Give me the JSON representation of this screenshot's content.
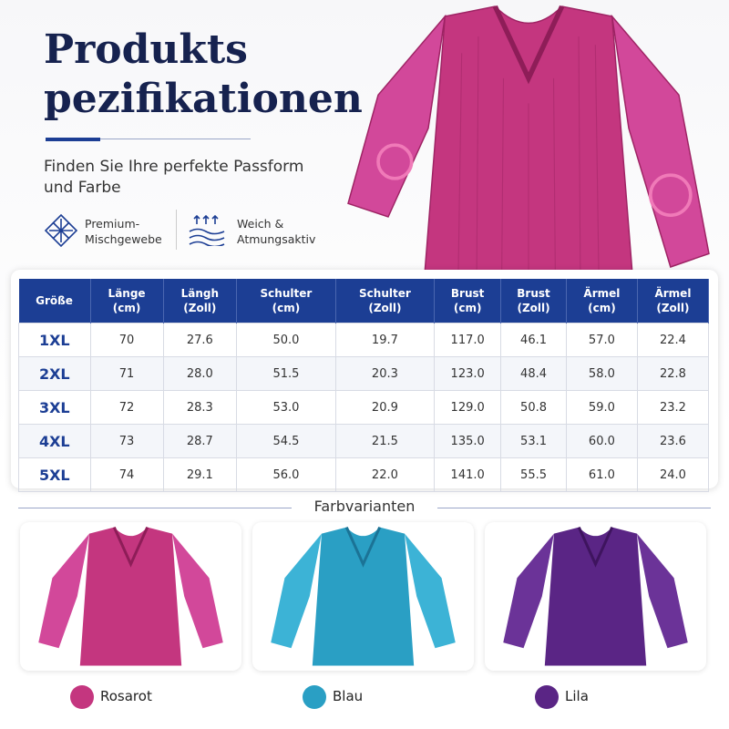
{
  "header": {
    "title_lines": [
      "Produkts",
      "pezifikationen"
    ],
    "subtitle_lines": [
      "Finden Sie Ihre perfekte Passform",
      "und Farbe"
    ],
    "features": [
      {
        "lines": [
          "Premium-",
          "Mischgewebe"
        ]
      },
      {
        "lines": [
          "Weich &",
          "Atmungsaktiv"
        ]
      }
    ]
  },
  "table": {
    "header": [
      [
        "Größe"
      ],
      [
        "Länge",
        "(cm)"
      ],
      [
        "Längh",
        "(Zoll)"
      ],
      [
        "Schulter",
        "(cm)"
      ],
      [
        "Schulter",
        "(Zoll)"
      ],
      [
        "Brust",
        "(cm)"
      ],
      [
        "Brust",
        "(Zoll)"
      ],
      [
        "Ärmel",
        "(cm)"
      ],
      [
        "Ärmel",
        "(Zoll)"
      ]
    ],
    "rows": [
      [
        "1XL",
        "70",
        "27.6",
        "50.0",
        "19.7",
        "117.0",
        "46.1",
        "57.0",
        "22.4"
      ],
      [
        "2XL",
        "71",
        "28.0",
        "51.5",
        "20.3",
        "123.0",
        "48.4",
        "58.0",
        "22.8"
      ],
      [
        "3XL",
        "72",
        "28.3",
        "53.0",
        "20.9",
        "129.0",
        "50.8",
        "59.0",
        "23.2"
      ],
      [
        "4XL",
        "73",
        "28.7",
        "54.5",
        "21.5",
        "135.0",
        "53.1",
        "60.0",
        "23.6"
      ],
      [
        "5XL",
        "74",
        "29.1",
        "56.0",
        "22.0",
        "141.0",
        "55.5",
        "61.0",
        "24.0"
      ]
    ]
  },
  "colors": {
    "title": "Farbvarianten",
    "variants": [
      {
        "name": "Rosarot"
      },
      {
        "name": "Blau"
      },
      {
        "name": "Lila"
      }
    ]
  }
}
